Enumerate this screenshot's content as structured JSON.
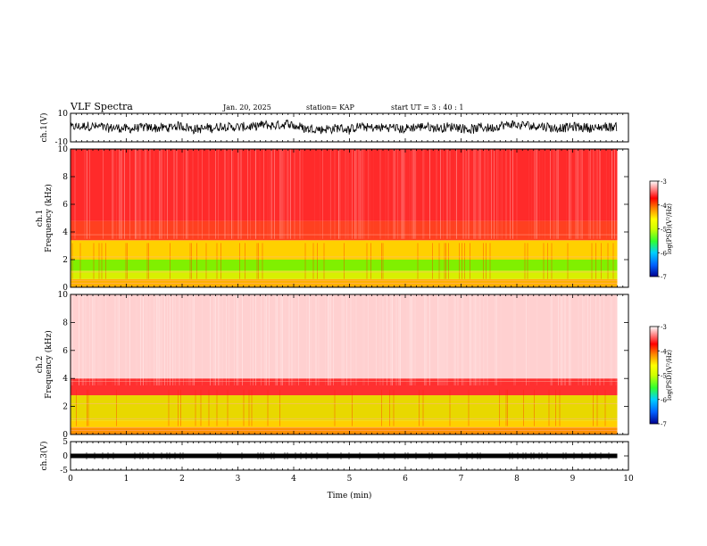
{
  "header": {
    "title": "VLF Spectra",
    "date": "Jan. 20, 2025",
    "station": "station= KAP",
    "start_ut": "start  UT =   3 : 40 : 1"
  },
  "chart_data": [
    {
      "type": "line",
      "name": "ch1-waveform",
      "ylabel": "ch.1(V)",
      "ylim": [
        -10,
        10
      ],
      "yticks": [
        "10",
        "-10"
      ],
      "xlim": [
        0,
        10
      ],
      "x_end": 9.8,
      "amplitude": 4,
      "color": "#000000"
    },
    {
      "type": "heatmap",
      "name": "ch1-spectrogram",
      "ylabel": "ch.1\nFrequency (kHz)",
      "ylabel_lines": [
        "ch.1",
        "Frequency (kHz)"
      ],
      "ylim": [
        0,
        10
      ],
      "yticks": [
        "0",
        "2",
        "4",
        "6",
        "8",
        "10"
      ],
      "xlim": [
        0,
        10
      ],
      "x_end": 9.8,
      "colorbar": {
        "label": "log(PSD)(V²/Hz)",
        "range": [
          -7,
          -3
        ],
        "ticks": [
          "-3",
          "-4",
          "-5",
          "-6",
          "-7"
        ],
        "colors": [
          "#00008f",
          "#0060ff",
          "#00d0ff",
          "#30ff30",
          "#d0ff00",
          "#ffff00",
          "#ff8000",
          "#ff0000",
          "#ffffff"
        ]
      },
      "bands": [
        {
          "from": 0.0,
          "to": 0.6,
          "color": "#ffb000"
        },
        {
          "from": 0.6,
          "to": 1.2,
          "color": "#d8f000"
        },
        {
          "from": 1.2,
          "to": 2.0,
          "color": "#80f000"
        },
        {
          "from": 2.0,
          "to": 3.4,
          "color": "#ffd000"
        },
        {
          "from": 3.4,
          "to": 4.8,
          "color": "#ff4020"
        },
        {
          "from": 4.8,
          "to": 10.0,
          "color": "#ff2a2a"
        }
      ]
    },
    {
      "type": "heatmap",
      "name": "ch2-spectrogram",
      "ylabel": "ch.2\nFrequency (kHz)",
      "ylabel_lines": [
        "ch.2",
        "Frequency (kHz)"
      ],
      "ylim": [
        0,
        10
      ],
      "yticks": [
        "0",
        "2",
        "4",
        "6",
        "8",
        "10"
      ],
      "xlim": [
        0,
        10
      ],
      "x_end": 9.8,
      "colorbar": {
        "label": "log(PSD)(V²/Hz)",
        "range": [
          -7,
          -3
        ],
        "ticks": [
          "-3",
          "-4",
          "-5",
          "-6",
          "-7"
        ],
        "colors": [
          "#00008f",
          "#0060ff",
          "#00d0ff",
          "#30ff30",
          "#d0ff00",
          "#ffff00",
          "#ff8000",
          "#ff0000",
          "#ffffff"
        ]
      },
      "bands": [
        {
          "from": 0.0,
          "to": 0.5,
          "color": "#ff9000"
        },
        {
          "from": 0.5,
          "to": 1.0,
          "color": "#ffd000"
        },
        {
          "from": 1.0,
          "to": 2.8,
          "color": "#e8d800"
        },
        {
          "from": 2.8,
          "to": 4.0,
          "color": "#ff3030"
        },
        {
          "from": 4.0,
          "to": 10.0,
          "color": "#ffd0d0"
        }
      ]
    },
    {
      "type": "line",
      "name": "ch3-waveform",
      "ylabel": "ch.3(V)",
      "ylim": [
        -5,
        5
      ],
      "yticks": [
        "5",
        "0",
        "-5"
      ],
      "xlim": [
        0,
        10
      ],
      "x_end": 9.8,
      "level": 0,
      "color": "#000000"
    }
  ],
  "xaxis": {
    "label": "Time (min)",
    "ticks": [
      "0",
      "1",
      "2",
      "3",
      "4",
      "5",
      "6",
      "7",
      "8",
      "9",
      "10"
    ],
    "range": [
      0,
      10
    ]
  }
}
